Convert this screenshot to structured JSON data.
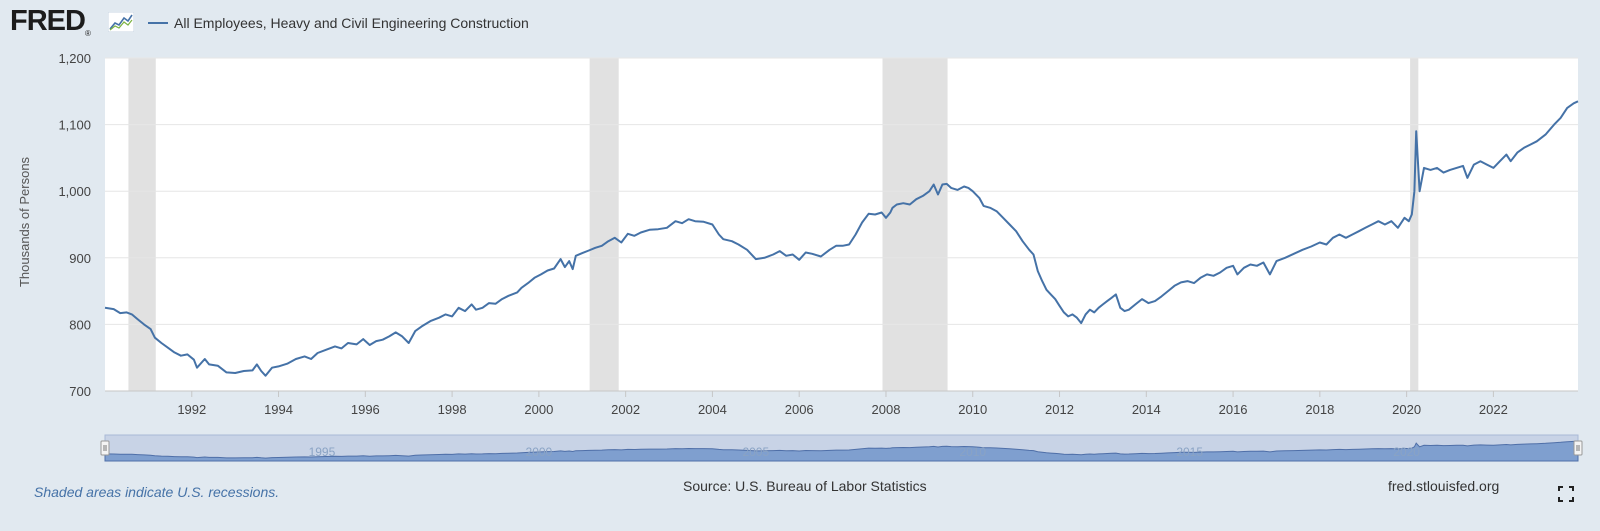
{
  "header": {
    "logo_text": "FRED",
    "logo_registered": "®",
    "logo_icon": "fred-chart-icon",
    "legend_label": "All Employees, Heavy and Civil Engineering Construction"
  },
  "footer": {
    "note": "Shaded areas indicate U.S. recessions.",
    "source": "Source: U.S. Bureau of Labor Statistics",
    "site": "fred.stlouisfed.org",
    "fullscreen_icon": "fullscreen-icon"
  },
  "colors": {
    "series": "#4572a7",
    "recession": "#e1e1e1",
    "page_background": "#e1e9f0",
    "plot_background": "#ffffff",
    "navigator_fill": "#7f9fcf"
  },
  "chart_data": {
    "type": "line",
    "title": "",
    "xlabel": "",
    "ylabel": "Thousands of Persons",
    "xlim": [
      1990.0,
      2023.95
    ],
    "ylim": [
      700,
      1200
    ],
    "y_ticks": [
      700,
      800,
      900,
      1000,
      1100,
      1200
    ],
    "y_tick_labels": [
      "700",
      "800",
      "900",
      "1,000",
      "1,100",
      "1,200"
    ],
    "x_ticks": [
      1992,
      1994,
      1996,
      1998,
      2000,
      2002,
      2004,
      2006,
      2008,
      2010,
      2012,
      2014,
      2016,
      2018,
      2020,
      2022
    ],
    "navigator_labels": [
      "1995",
      "2000",
      "2005",
      "2010",
      "2015",
      "2020"
    ],
    "grid": "horizontal",
    "recessions": [
      [
        1990.54,
        1991.17
      ],
      [
        2001.17,
        2001.84
      ],
      [
        2007.92,
        2009.42
      ],
      [
        2020.08,
        2020.27
      ]
    ],
    "series": [
      {
        "name": "All Employees, Heavy and Civil Engineering Construction",
        "points": [
          [
            1990.0,
            825
          ],
          [
            1990.2,
            823
          ],
          [
            1990.35,
            817
          ],
          [
            1990.5,
            818
          ],
          [
            1990.62,
            815
          ],
          [
            1990.75,
            808
          ],
          [
            1990.9,
            800
          ],
          [
            1991.05,
            793
          ],
          [
            1991.15,
            780
          ],
          [
            1991.3,
            772
          ],
          [
            1991.45,
            765
          ],
          [
            1991.6,
            758
          ],
          [
            1991.75,
            753
          ],
          [
            1991.9,
            755
          ],
          [
            1992.05,
            747
          ],
          [
            1992.12,
            735
          ],
          [
            1992.3,
            748
          ],
          [
            1992.4,
            740
          ],
          [
            1992.6,
            738
          ],
          [
            1992.8,
            728
          ],
          [
            1993.0,
            727
          ],
          [
            1993.2,
            730
          ],
          [
            1993.4,
            731
          ],
          [
            1993.5,
            740
          ],
          [
            1993.6,
            730
          ],
          [
            1993.7,
            723
          ],
          [
            1993.85,
            735
          ],
          [
            1994.0,
            737
          ],
          [
            1994.2,
            741
          ],
          [
            1994.4,
            748
          ],
          [
            1994.6,
            752
          ],
          [
            1994.75,
            748
          ],
          [
            1994.9,
            757
          ],
          [
            1995.1,
            762
          ],
          [
            1995.3,
            767
          ],
          [
            1995.45,
            764
          ],
          [
            1995.6,
            772
          ],
          [
            1995.8,
            770
          ],
          [
            1995.95,
            778
          ],
          [
            1996.1,
            769
          ],
          [
            1996.25,
            775
          ],
          [
            1996.4,
            777
          ],
          [
            1996.55,
            782
          ],
          [
            1996.7,
            788
          ],
          [
            1996.85,
            782
          ],
          [
            1997.0,
            772
          ],
          [
            1997.15,
            790
          ],
          [
            1997.3,
            797
          ],
          [
            1997.5,
            805
          ],
          [
            1997.7,
            810
          ],
          [
            1997.85,
            815
          ],
          [
            1998.0,
            812
          ],
          [
            1998.15,
            825
          ],
          [
            1998.3,
            820
          ],
          [
            1998.45,
            830
          ],
          [
            1998.55,
            822
          ],
          [
            1998.7,
            825
          ],
          [
            1998.85,
            832
          ],
          [
            1999.0,
            831
          ],
          [
            1999.15,
            838
          ],
          [
            1999.3,
            843
          ],
          [
            1999.5,
            848
          ],
          [
            1999.6,
            855
          ],
          [
            1999.75,
            862
          ],
          [
            1999.9,
            870
          ],
          [
            2000.05,
            875
          ],
          [
            2000.2,
            881
          ],
          [
            2000.35,
            884
          ],
          [
            2000.5,
            898
          ],
          [
            2000.6,
            886
          ],
          [
            2000.7,
            895
          ],
          [
            2000.78,
            883
          ],
          [
            2000.85,
            903
          ],
          [
            2001.0,
            907
          ],
          [
            2001.15,
            911
          ],
          [
            2001.3,
            915
          ],
          [
            2001.45,
            918
          ],
          [
            2001.6,
            925
          ],
          [
            2001.75,
            930
          ],
          [
            2001.9,
            923
          ],
          [
            2002.05,
            936
          ],
          [
            2002.2,
            933
          ],
          [
            2002.35,
            938
          ],
          [
            2002.55,
            942
          ],
          [
            2002.75,
            943
          ],
          [
            2002.95,
            945
          ],
          [
            2003.15,
            955
          ],
          [
            2003.3,
            952
          ],
          [
            2003.45,
            958
          ],
          [
            2003.6,
            955
          ],
          [
            2003.8,
            954
          ],
          [
            2004.0,
            950
          ],
          [
            2004.15,
            935
          ],
          [
            2004.25,
            928
          ],
          [
            2004.45,
            925
          ],
          [
            2004.6,
            920
          ],
          [
            2004.8,
            912
          ],
          [
            2005.0,
            898
          ],
          [
            2005.2,
            900
          ],
          [
            2005.4,
            905
          ],
          [
            2005.55,
            910
          ],
          [
            2005.7,
            903
          ],
          [
            2005.85,
            905
          ],
          [
            2006.0,
            897
          ],
          [
            2006.15,
            908
          ],
          [
            2006.3,
            906
          ],
          [
            2006.5,
            902
          ],
          [
            2006.7,
            912
          ],
          [
            2006.85,
            918
          ],
          [
            2007.0,
            918
          ],
          [
            2007.15,
            920
          ],
          [
            2007.3,
            935
          ],
          [
            2007.45,
            953
          ],
          [
            2007.6,
            966
          ],
          [
            2007.75,
            965
          ],
          [
            2007.9,
            968
          ],
          [
            2008.0,
            960
          ],
          [
            2008.1,
            968
          ],
          [
            2008.15,
            975
          ],
          [
            2008.25,
            980
          ],
          [
            2008.4,
            982
          ],
          [
            2008.55,
            980
          ],
          [
            2008.7,
            988
          ],
          [
            2008.85,
            993
          ],
          [
            2009.0,
            1000
          ],
          [
            2009.1,
            1010
          ],
          [
            2009.2,
            995
          ],
          [
            2009.3,
            1010
          ],
          [
            2009.4,
            1011
          ],
          [
            2009.5,
            1005
          ],
          [
            2009.65,
            1002
          ],
          [
            2009.8,
            1007
          ],
          [
            2009.9,
            1005
          ],
          [
            2010.0,
            1000
          ],
          [
            2010.15,
            990
          ],
          [
            2010.25,
            978
          ],
          [
            2010.4,
            975
          ],
          [
            2010.55,
            970
          ],
          [
            2010.7,
            960
          ],
          [
            2010.85,
            950
          ],
          [
            2011.0,
            940
          ],
          [
            2011.15,
            925
          ],
          [
            2011.3,
            912
          ],
          [
            2011.4,
            905
          ],
          [
            2011.5,
            880
          ],
          [
            2011.6,
            865
          ],
          [
            2011.7,
            852
          ],
          [
            2011.8,
            845
          ],
          [
            2011.9,
            838
          ],
          [
            2012.0,
            828
          ],
          [
            2012.1,
            818
          ],
          [
            2012.2,
            812
          ],
          [
            2012.3,
            815
          ],
          [
            2012.4,
            810
          ],
          [
            2012.5,
            802
          ],
          [
            2012.6,
            815
          ],
          [
            2012.7,
            822
          ],
          [
            2012.8,
            818
          ],
          [
            2012.9,
            825
          ],
          [
            2013.0,
            830
          ],
          [
            2013.1,
            835
          ],
          [
            2013.2,
            840
          ],
          [
            2013.3,
            845
          ],
          [
            2013.4,
            825
          ],
          [
            2013.5,
            820
          ],
          [
            2013.6,
            822
          ],
          [
            2013.75,
            830
          ],
          [
            2013.9,
            838
          ],
          [
            2014.05,
            832
          ],
          [
            2014.2,
            835
          ],
          [
            2014.35,
            842
          ],
          [
            2014.5,
            850
          ],
          [
            2014.65,
            858
          ],
          [
            2014.8,
            863
          ],
          [
            2014.95,
            865
          ],
          [
            2015.1,
            862
          ],
          [
            2015.25,
            870
          ],
          [
            2015.4,
            875
          ],
          [
            2015.55,
            873
          ],
          [
            2015.7,
            878
          ],
          [
            2015.85,
            885
          ],
          [
            2016.0,
            888
          ],
          [
            2016.1,
            875
          ],
          [
            2016.25,
            885
          ],
          [
            2016.4,
            890
          ],
          [
            2016.55,
            888
          ],
          [
            2016.7,
            893
          ],
          [
            2016.85,
            875
          ],
          [
            2017.0,
            895
          ],
          [
            2017.2,
            900
          ],
          [
            2017.4,
            906
          ],
          [
            2017.6,
            912
          ],
          [
            2017.8,
            917
          ],
          [
            2018.0,
            923
          ],
          [
            2018.15,
            920
          ],
          [
            2018.3,
            930
          ],
          [
            2018.45,
            935
          ],
          [
            2018.6,
            930
          ],
          [
            2018.75,
            935
          ],
          [
            2018.9,
            940
          ],
          [
            2019.05,
            945
          ],
          [
            2019.2,
            950
          ],
          [
            2019.35,
            955
          ],
          [
            2019.5,
            950
          ],
          [
            2019.65,
            955
          ],
          [
            2019.8,
            945
          ],
          [
            2019.95,
            960
          ],
          [
            2020.05,
            955
          ],
          [
            2020.12,
            965
          ],
          [
            2020.18,
            1000
          ],
          [
            2020.22,
            1090
          ],
          [
            2020.3,
            1000
          ],
          [
            2020.4,
            1035
          ],
          [
            2020.55,
            1032
          ],
          [
            2020.7,
            1035
          ],
          [
            2020.85,
            1028
          ],
          [
            2021.0,
            1032
          ],
          [
            2021.15,
            1035
          ],
          [
            2021.3,
            1038
          ],
          [
            2021.4,
            1020
          ],
          [
            2021.55,
            1040
          ],
          [
            2021.7,
            1045
          ],
          [
            2021.85,
            1040
          ],
          [
            2022.0,
            1035
          ],
          [
            2022.15,
            1045
          ],
          [
            2022.3,
            1055
          ],
          [
            2022.4,
            1045
          ],
          [
            2022.55,
            1058
          ],
          [
            2022.7,
            1065
          ],
          [
            2022.85,
            1070
          ],
          [
            2023.0,
            1075
          ],
          [
            2023.2,
            1085
          ],
          [
            2023.4,
            1100
          ],
          [
            2023.55,
            1110
          ],
          [
            2023.7,
            1125
          ],
          [
            2023.85,
            1132
          ],
          [
            2023.95,
            1135
          ]
        ]
      }
    ]
  }
}
